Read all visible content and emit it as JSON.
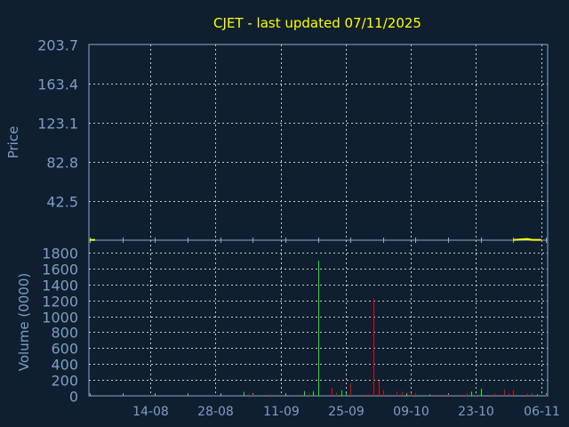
{
  "chart_data": [
    {
      "type": "line",
      "title": "CJET - last updated 07/11/2025",
      "ylabel": "Price",
      "ylim": [
        2.2,
        203.7
      ],
      "yticks": [
        "203.7",
        "163.4",
        "123.1",
        "82.8",
        "42.5"
      ],
      "xlim": [
        "2025-08-01",
        "2025-11-07"
      ],
      "grid": true,
      "series": [
        {
          "color": "#ffff00",
          "points": [
            [
              "2025-08-01",
              2.5
            ],
            null,
            [
              "2025-10-31",
              2.5
            ],
            [
              "2025-11-03",
              3.5
            ],
            [
              "2025-11-04",
              2.6
            ],
            [
              "2025-11-05",
              2.6
            ],
            [
              "2025-11-06",
              2.6
            ]
          ]
        }
      ]
    },
    {
      "type": "bar",
      "ylabel": "Volume (0000)",
      "ylim": [
        0,
        1800
      ],
      "yticks": [
        "0",
        "200",
        "400",
        "600",
        "800",
        "1000",
        "1200",
        "1400",
        "1600",
        "1800"
      ],
      "xticks": [
        {
          "date": "2025-08-14",
          "label": "14-08"
        },
        {
          "date": "2025-08-28",
          "label": "28-08"
        },
        {
          "date": "2025-09-11",
          "label": "11-09"
        },
        {
          "date": "2025-09-25",
          "label": "25-09"
        },
        {
          "date": "2025-10-09",
          "label": "09-10"
        },
        {
          "date": "2025-10-23",
          "label": "23-10"
        },
        {
          "date": "2025-11-06",
          "label": "06-11"
        }
      ],
      "grid": true,
      "colors": {
        "up": "#00ff00",
        "down": "#ff0000"
      },
      "bars": [
        [
          "2025-09-03",
          50,
          "up"
        ],
        [
          "2025-09-04",
          20,
          "down"
        ],
        [
          "2025-09-05",
          15,
          "down"
        ],
        [
          "2025-09-09",
          20,
          "down"
        ],
        [
          "2025-09-10",
          20,
          "down"
        ],
        [
          "2025-09-15",
          20,
          "down"
        ],
        [
          "2025-09-16",
          60,
          "up"
        ],
        [
          "2025-09-17",
          25,
          "down"
        ],
        [
          "2025-09-18",
          60,
          "up"
        ],
        [
          "2025-09-19",
          1700,
          "up"
        ],
        [
          "2025-09-22",
          100,
          "down"
        ],
        [
          "2025-09-23",
          40,
          "down"
        ],
        [
          "2025-09-24",
          70,
          "up"
        ],
        [
          "2025-09-25",
          30,
          "up"
        ],
        [
          "2025-09-26",
          160,
          "down"
        ],
        [
          "2025-09-29",
          20,
          "down"
        ],
        [
          "2025-09-30",
          20,
          "down"
        ],
        [
          "2025-10-01",
          1220,
          "down"
        ],
        [
          "2025-10-02",
          190,
          "down"
        ],
        [
          "2025-10-03",
          70,
          "down"
        ],
        [
          "2025-10-06",
          55,
          "down"
        ],
        [
          "2025-10-07",
          55,
          "down"
        ],
        [
          "2025-10-08",
          35,
          "up"
        ],
        [
          "2025-10-09",
          35,
          "down"
        ],
        [
          "2025-10-10",
          35,
          "down"
        ],
        [
          "2025-10-13",
          20,
          "up"
        ],
        [
          "2025-10-14",
          15,
          "down"
        ],
        [
          "2025-10-15",
          15,
          "down"
        ],
        [
          "2025-10-16",
          20,
          "down"
        ],
        [
          "2025-10-17",
          15,
          "down"
        ],
        [
          "2025-10-20",
          20,
          "down"
        ],
        [
          "2025-10-21",
          30,
          "down"
        ],
        [
          "2025-10-22",
          55,
          "up"
        ],
        [
          "2025-10-23",
          15,
          "down"
        ],
        [
          "2025-10-24",
          90,
          "up"
        ],
        [
          "2025-10-27",
          30,
          "down"
        ],
        [
          "2025-10-28",
          15,
          "down"
        ],
        [
          "2025-10-29",
          75,
          "down"
        ],
        [
          "2025-10-30",
          30,
          "down"
        ],
        [
          "2025-10-31",
          70,
          "down"
        ],
        [
          "2025-11-03",
          30,
          "down"
        ],
        [
          "2025-11-04",
          35,
          "down"
        ],
        [
          "2025-11-05",
          20,
          "up"
        ],
        [
          "2025-11-07",
          15,
          "down"
        ]
      ]
    }
  ],
  "colors": {
    "background": "#0f1f30",
    "axis": "#8aa8d0",
    "text": "#7d9dc6",
    "title": "#ffff00",
    "grid": "#c8c8c8"
  }
}
